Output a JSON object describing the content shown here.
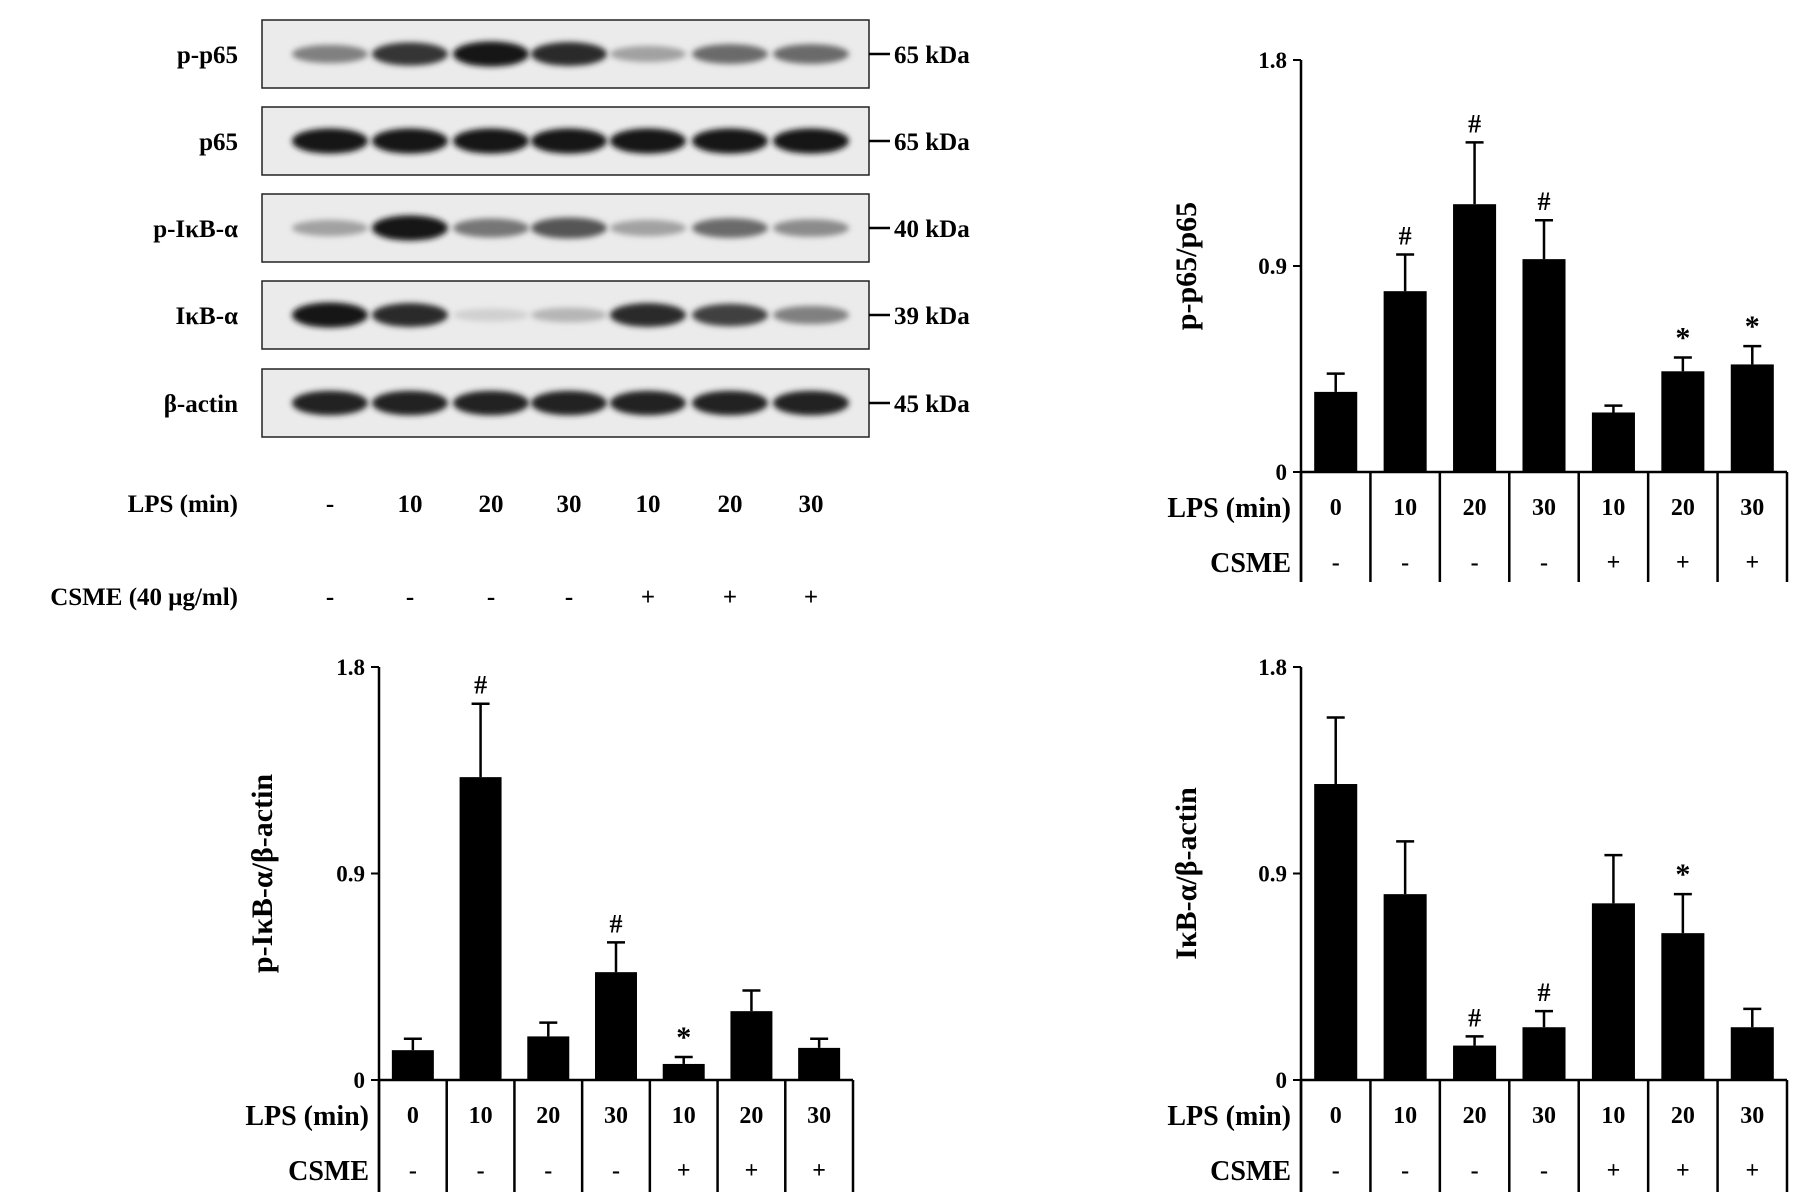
{
  "blot": {
    "bands": [
      {
        "label": "p-p65",
        "size": "65 kDa",
        "intensity": [
          0.45,
          0.8,
          0.95,
          0.85,
          0.3,
          0.55,
          0.55
        ]
      },
      {
        "label": "p65",
        "size": "65 kDa",
        "intensity": [
          0.95,
          0.95,
          0.95,
          0.95,
          0.95,
          0.95,
          0.95
        ]
      },
      {
        "label": "p-IκB-α",
        "size": "40 kDa",
        "intensity": [
          0.3,
          0.95,
          0.5,
          0.65,
          0.3,
          0.55,
          0.4
        ]
      },
      {
        "label": "IκB-α",
        "size": "39 kDa",
        "intensity": [
          0.95,
          0.85,
          0.08,
          0.2,
          0.85,
          0.75,
          0.45
        ]
      },
      {
        "label": "β-actin",
        "size": "45 kDa",
        "intensity": [
          0.9,
          0.9,
          0.9,
          0.9,
          0.9,
          0.9,
          0.9
        ]
      }
    ],
    "lps_label": "LPS (min)",
    "lps_values": [
      "-",
      "10",
      "20",
      "30",
      "10",
      "20",
      "30"
    ],
    "csme_label": "CSME (40 μg/ml)",
    "csme_values": [
      "-",
      "-",
      "-",
      "-",
      "+",
      "+",
      "+"
    ]
  },
  "chart_data": [
    {
      "type": "bar",
      "ylabel": "p-p65/p65",
      "ylim": [
        0,
        1.8
      ],
      "yticks": [
        "0",
        "0.9",
        "1.8"
      ],
      "row1_label": "LPS (min)",
      "categories": [
        "0",
        "10",
        "20",
        "30",
        "10",
        "20",
        "30"
      ],
      "row2_label": "CSME",
      "csme": [
        "-",
        "-",
        "-",
        "-",
        "+",
        "+",
        "+"
      ],
      "values": [
        0.35,
        0.79,
        1.17,
        0.93,
        0.26,
        0.44,
        0.47
      ],
      "errors": [
        0.08,
        0.16,
        0.27,
        0.17,
        0.03,
        0.06,
        0.08
      ],
      "marks": [
        "",
        "#",
        "#",
        "#",
        "",
        "*",
        "*"
      ]
    },
    {
      "type": "bar",
      "ylabel": "p-IκB-α/β-actin",
      "ylim": [
        0,
        1.8
      ],
      "yticks": [
        "0",
        "0.9",
        "1.8"
      ],
      "row1_label": "LPS (min)",
      "categories": [
        "0",
        "10",
        "20",
        "30",
        "10",
        "20",
        "30"
      ],
      "row2_label": "CSME",
      "csme": [
        "-",
        "-",
        "-",
        "-",
        "+",
        "+",
        "+"
      ],
      "values": [
        0.13,
        1.32,
        0.19,
        0.47,
        0.07,
        0.3,
        0.14
      ],
      "errors": [
        0.05,
        0.32,
        0.06,
        0.13,
        0.03,
        0.09,
        0.04
      ],
      "marks": [
        "",
        "#",
        "",
        "#",
        "*",
        "",
        ""
      ]
    },
    {
      "type": "bar",
      "ylabel": "IκB-α/β-actin",
      "ylim": [
        0,
        1.8
      ],
      "yticks": [
        "0",
        "0.9",
        "1.8"
      ],
      "row1_label": "LPS (min)",
      "categories": [
        "0",
        "10",
        "20",
        "30",
        "10",
        "20",
        "30"
      ],
      "row2_label": "CSME",
      "csme": [
        "-",
        "-",
        "-",
        "-",
        "+",
        "+",
        "+"
      ],
      "values": [
        1.29,
        0.81,
        0.15,
        0.23,
        0.77,
        0.64,
        0.23
      ],
      "errors": [
        0.29,
        0.23,
        0.04,
        0.07,
        0.21,
        0.17,
        0.08
      ],
      "marks": [
        "",
        "",
        "#",
        "#",
        "",
        "*",
        ""
      ]
    }
  ]
}
